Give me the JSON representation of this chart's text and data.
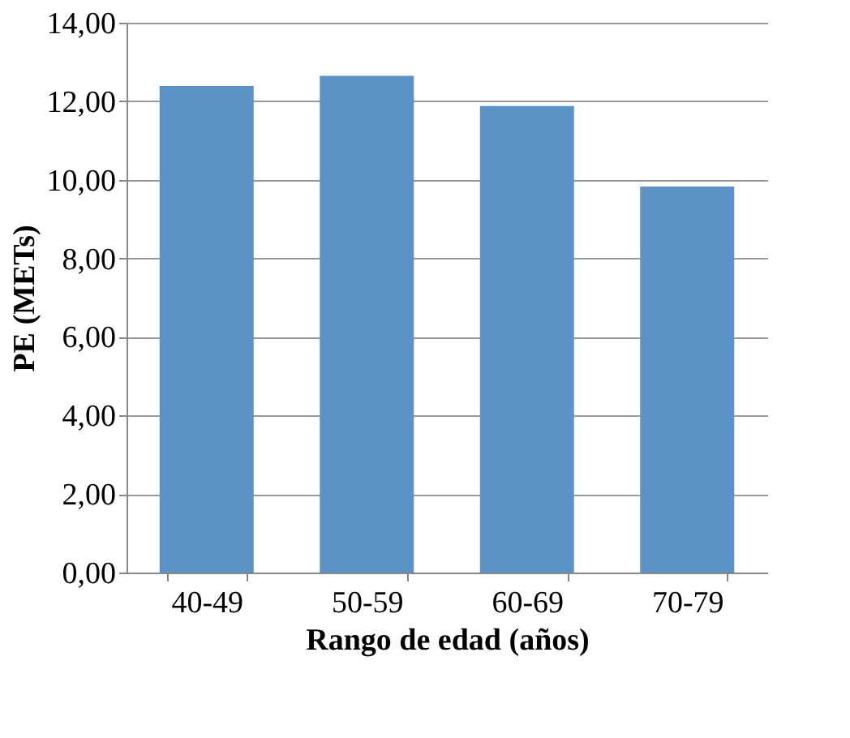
{
  "chart_data": {
    "type": "bar",
    "xlabel": "Rango de edad (años)",
    "ylabel": "PE (METs)",
    "categories": [
      "40-49",
      "50-59",
      "60-69",
      "70-79"
    ],
    "series": [
      {
        "color": "#5b93c7",
        "values": [
          12.39,
          12.65,
          11.88,
          9.83
        ]
      }
    ],
    "ylim": [
      0,
      14
    ],
    "yticks": [
      {
        "value": 0,
        "label": "0,00"
      },
      {
        "value": 2,
        "label": "2,00"
      },
      {
        "value": 4,
        "label": "4,00"
      },
      {
        "value": 6,
        "label": "6,00"
      },
      {
        "value": 8,
        "label": "8,00"
      },
      {
        "value": 10,
        "label": "10,00"
      },
      {
        "value": 12,
        "label": "12,00"
      },
      {
        "value": 14,
        "label": "14,00"
      }
    ],
    "grid": "y",
    "legend": false
  }
}
